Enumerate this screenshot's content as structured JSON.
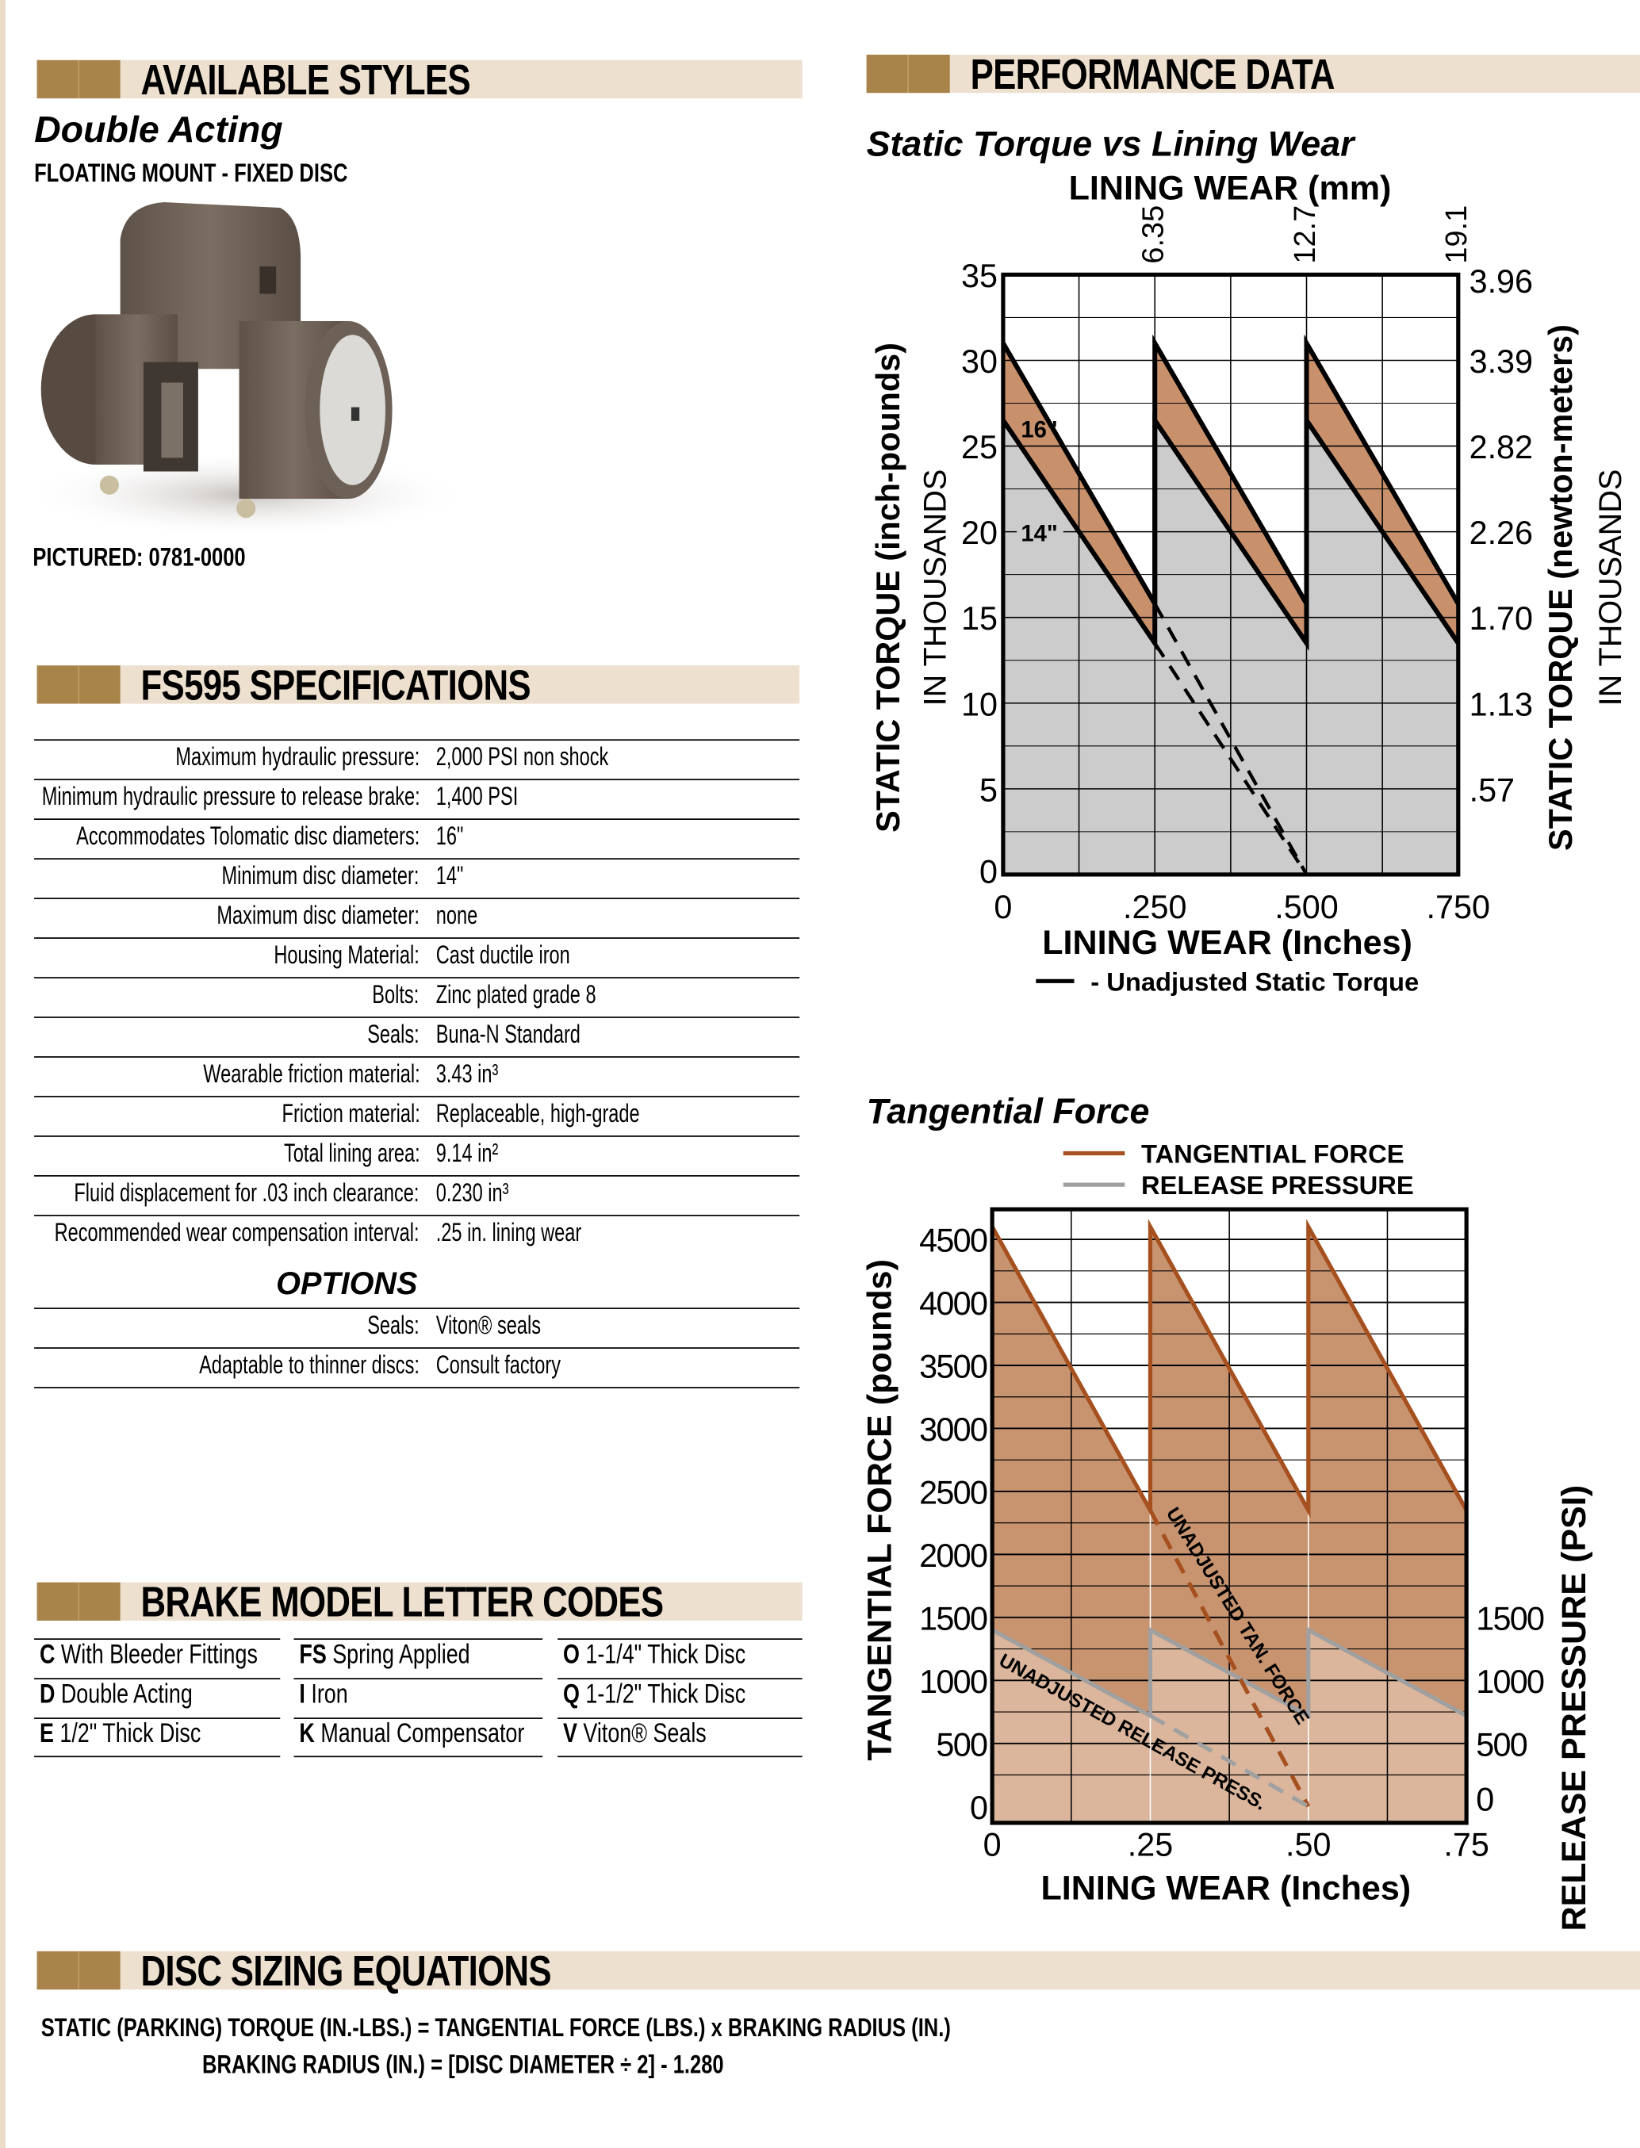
{
  "left": {
    "available_styles": {
      "title": "AVAILABLE STYLES",
      "style_name": "Double Acting",
      "subtitle": "FLOATING MOUNT - FIXED DISC",
      "pictured": "PICTURED: 0781-0000"
    },
    "specs": {
      "title": "FS595 SPECIFICATIONS",
      "rows": [
        {
          "label": "Maximum hydraulic pressure:",
          "value": "2,000 PSI non shock"
        },
        {
          "label": "Minimum hydraulic pressure to release brake:",
          "value": "1,400 PSI"
        },
        {
          "label": "Accommodates Tolomatic disc diameters:",
          "value": "16\""
        },
        {
          "label": "Minimum disc diameter:",
          "value": "14\""
        },
        {
          "label": "Maximum disc diameter:",
          "value": "none"
        },
        {
          "label": "Housing Material:",
          "value": "Cast ductile iron"
        },
        {
          "label": "Bolts:",
          "value": "Zinc plated grade 8"
        },
        {
          "label": "Seals:",
          "value": "Buna-N Standard"
        },
        {
          "label": "Wearable friction material:",
          "value": "3.43 in³"
        },
        {
          "label": "Friction material:",
          "value": "Replaceable, high-grade"
        },
        {
          "label": "Total lining area:",
          "value": "9.14 in²"
        },
        {
          "label": "Fluid displacement for .03 inch clearance:",
          "value": "0.230 in³"
        },
        {
          "label": "Recommended wear compensation interval:",
          "value": ".25 in. lining wear"
        }
      ],
      "options_title": "OPTIONS",
      "options": [
        {
          "label": "Seals:",
          "value": "Viton® seals"
        },
        {
          "label": "Adaptable to thinner discs:",
          "value": "Consult factory"
        }
      ]
    },
    "codes": {
      "title": "BRAKE MODEL LETTER CODES",
      "columns": [
        [
          {
            "code": "C",
            "text": "With Bleeder Fittings"
          },
          {
            "code": "D",
            "text": "Double Acting"
          },
          {
            "code": "E",
            "text": "1/2\" Thick Disc"
          }
        ],
        [
          {
            "code": "FS",
            "text": "Spring Applied"
          },
          {
            "code": "I",
            "text": "Iron"
          },
          {
            "code": "K",
            "text": "Manual Compensator"
          }
        ],
        [
          {
            "code": "O",
            "text": "1-1/4\" Thick Disc"
          },
          {
            "code": "Q",
            "text": "1-1/2\" Thick Disc"
          },
          {
            "code": "V",
            "text": "Viton® Seals"
          }
        ]
      ]
    }
  },
  "performance": {
    "title": "PERFORMANCE DATA"
  },
  "disc_sizing": {
    "title": "DISC SIZING EQUATIONS",
    "eq1": "STATIC (PARKING) TORQUE (IN.-LBS.) = TANGENTIAL FORCE (LBS.) x BRAKING RADIUS (IN.)",
    "eq2": "BRAKING RADIUS (IN.) = [DISC DIAMETER ÷ 2] - 1.280"
  },
  "colors": {
    "header_bg": "#ede0cf",
    "header_block": "#a8844a",
    "torque_band": "#c8916c",
    "gray_fill": "#cccccc",
    "tan_line": "#a5501e",
    "tan_fill": "#c8936f",
    "release_fill": "#dbb69c",
    "release_line": "#a0a0a0"
  },
  "chart_data": [
    {
      "type": "line",
      "title": "Static Torque vs Lining Wear",
      "xlabel": "LINING WEAR (Inches)",
      "x2label": "LINING WEAR (mm)",
      "ylabel": "STATIC TORQUE (inch-pounds)",
      "ylabel_sub": "IN THOUSANDS",
      "y2label": "STATIC TORQUE (newton-meters)",
      "y2label_sub": "IN THOUSANDS",
      "xlim": [
        0,
        0.75
      ],
      "ylim": [
        0,
        35
      ],
      "x_ticks": [
        "0",
        ".250",
        ".500",
        ".750"
      ],
      "x_tick_values": [
        0,
        0.25,
        0.5,
        0.75
      ],
      "x2_ticks": [
        "6.35",
        "12.7",
        "19.1"
      ],
      "x2_tick_values": [
        0.25,
        0.5,
        0.75
      ],
      "y_ticks": [
        "0",
        "5",
        "10",
        "15",
        "20",
        "25",
        "30",
        "35"
      ],
      "y_tick_values": [
        0,
        5,
        10,
        15,
        20,
        25,
        30,
        35
      ],
      "y2_ticks": [
        ".57",
        "1.13",
        "1.70",
        "2.26",
        "2.82",
        "3.39",
        "3.96"
      ],
      "y2_tick_values": [
        5,
        10,
        15,
        20,
        25,
        30,
        35
      ],
      "grid": true,
      "series": [
        {
          "name": "16\"",
          "x": [
            0,
            0.25,
            0.25,
            0.5,
            0.5,
            0.75
          ],
          "y": [
            31,
            15.8,
            31,
            15.8,
            31,
            15.8
          ]
        },
        {
          "name": "14\"",
          "x": [
            0,
            0.25,
            0.25,
            0.5,
            0.5,
            0.75
          ],
          "y": [
            26.5,
            13.5,
            26.5,
            13.5,
            26.5,
            13.5
          ]
        },
        {
          "name": "Unadjusted 16\"",
          "dashed": true,
          "x": [
            0.25,
            0.5
          ],
          "y": [
            15.8,
            0
          ]
        },
        {
          "name": "Unadjusted 14\"",
          "dashed": true,
          "x": [
            0.25,
            0.5
          ],
          "y": [
            13.5,
            0
          ]
        }
      ],
      "labels": {
        "l16": "16\"",
        "l14": "14\""
      },
      "legend": {
        "text": "- Unadjusted Static Torque",
        "position": "bottom"
      }
    },
    {
      "type": "line",
      "title": "Tangential Force",
      "xlabel": "LINING WEAR (Inches)",
      "ylabel": "TANGENTIAL FORCE (pounds)",
      "y2label": "RELEASE PRESSURE (PSI)",
      "xlim": [
        0,
        0.75
      ],
      "ylim": [
        0,
        4740
      ],
      "x_ticks": [
        "0",
        ".25",
        ".50",
        ".75"
      ],
      "x_tick_values": [
        0,
        0.25,
        0.5,
        0.75
      ],
      "y_ticks": [
        "0",
        "500",
        "1000",
        "1500",
        "2000",
        "2500",
        "3000",
        "3500",
        "4000",
        "4500"
      ],
      "y_tick_values": [
        0,
        500,
        1000,
        1500,
        2000,
        2500,
        3000,
        3500,
        4000,
        4500
      ],
      "y2_ticks": [
        "0",
        "500",
        "1000",
        "1500"
      ],
      "y2_tick_values": [
        0,
        500,
        1000,
        1500
      ],
      "grid": true,
      "series": [
        {
          "name": "TANGENTIAL FORCE",
          "x": [
            0,
            0.25,
            0.25,
            0.5,
            0.5,
            0.75
          ],
          "y": [
            4600,
            2350,
            4600,
            2350,
            4600,
            2350
          ]
        },
        {
          "name": "RELEASE PRESSURE",
          "x": [
            0,
            0.25,
            0.25,
            0.5,
            0.5,
            0.75
          ],
          "y": [
            1400,
            720,
            1400,
            720,
            1400,
            720
          ]
        },
        {
          "name": "UNADJUSTED TAN. FORCE",
          "dashed": true,
          "x": [
            0.25,
            0.5
          ],
          "y": [
            2350,
            0
          ]
        },
        {
          "name": "UNADJUSTED RELEASE PRESS.",
          "dashed": true,
          "x": [
            0.25,
            0.5
          ],
          "y": [
            720,
            0
          ]
        }
      ],
      "legend": {
        "items": [
          "TANGENTIAL FORCE",
          "RELEASE PRESSURE"
        ],
        "position": "top"
      },
      "annotations": [
        "UNADJUSTED TAN. FORCE",
        "UNADJUSTED RELEASE PRESS."
      ]
    }
  ]
}
